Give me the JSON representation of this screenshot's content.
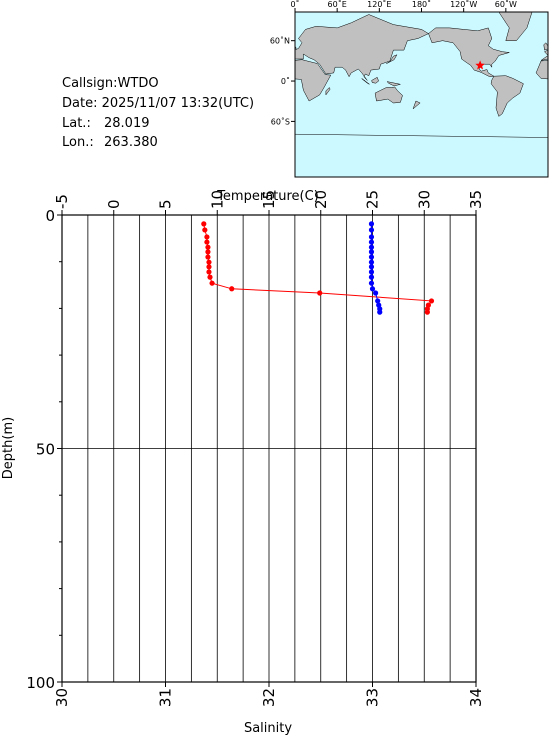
{
  "info": {
    "callsign": "Callsign:WTDO",
    "date": "Date:  2025/11/07 13:32(UTC)",
    "lat_label": "Lat.:",
    "lat": "28.019",
    "lon_label": "Lon.:",
    "lon": "263.380"
  },
  "map": {
    "lonlim": [
      0,
      360
    ],
    "latlim": [
      -85,
      78
    ],
    "land_color": "#c0c0c0",
    "sea_color": "#ccf8ff",
    "marker_color": "#ff0000",
    "lon_ticks": [
      {
        "value": 0,
        "label": "0˚"
      },
      {
        "value": 60,
        "label": "60˚E"
      },
      {
        "value": 120,
        "label": "120˚E"
      },
      {
        "value": 180,
        "label": "180˚"
      },
      {
        "value": 240,
        "label": "120˚W"
      },
      {
        "value": 300,
        "label": "60˚W"
      }
    ],
    "lat_ticks": [
      {
        "value": 60,
        "label": "60˚N"
      },
      {
        "value": 0,
        "label": "0˚"
      },
      {
        "value": -60,
        "label": "60˚S"
      }
    ]
  },
  "chart_data": {
    "type": "profile",
    "x2label": "Temperature(C)",
    "xlabel": "Salinity",
    "ylabel": "Depth(m)",
    "x2lim": [
      -5,
      35
    ],
    "x2ticks": [
      -5,
      0,
      5,
      10,
      15,
      20,
      25,
      30,
      35
    ],
    "x2grid": [
      -2.5,
      0,
      2.5,
      5,
      7.5,
      10,
      12.5,
      15,
      17.5,
      20,
      22.5,
      25,
      27.5,
      30,
      32.5
    ],
    "xlim": [
      30,
      34
    ],
    "xticks": [
      30,
      31,
      32,
      33,
      34
    ],
    "ylim": [
      0,
      100
    ],
    "yticks": [
      0,
      50,
      100
    ],
    "yminorticks": [
      10,
      20,
      30,
      40,
      60,
      70,
      80,
      90
    ],
    "ygrid": [
      50
    ],
    "y_inverted": true,
    "depths": [
      1.9,
      3.2,
      4.7,
      5.8,
      6.9,
      7.9,
      9.0,
      10.1,
      11.1,
      12.2,
      13.3,
      14.6,
      15.8,
      16.7,
      18.4,
      19.3,
      20.1,
      20.8
    ],
    "series": [
      {
        "color": "#ff0000",
        "axis": "x2",
        "values": [
          8.7,
          8.8,
          9.0,
          9.0,
          9.1,
          9.1,
          9.1,
          9.2,
          9.2,
          9.2,
          9.3,
          9.5,
          11.4,
          19.9,
          30.7,
          30.4,
          30.3,
          30.3
        ]
      },
      {
        "color": "#0000ff",
        "axis": "x",
        "values": [
          32.99,
          32.99,
          32.99,
          32.99,
          32.99,
          32.99,
          32.99,
          32.99,
          32.99,
          32.99,
          32.99,
          32.99,
          33.0,
          33.03,
          33.05,
          33.06,
          33.07,
          33.07
        ]
      }
    ]
  }
}
